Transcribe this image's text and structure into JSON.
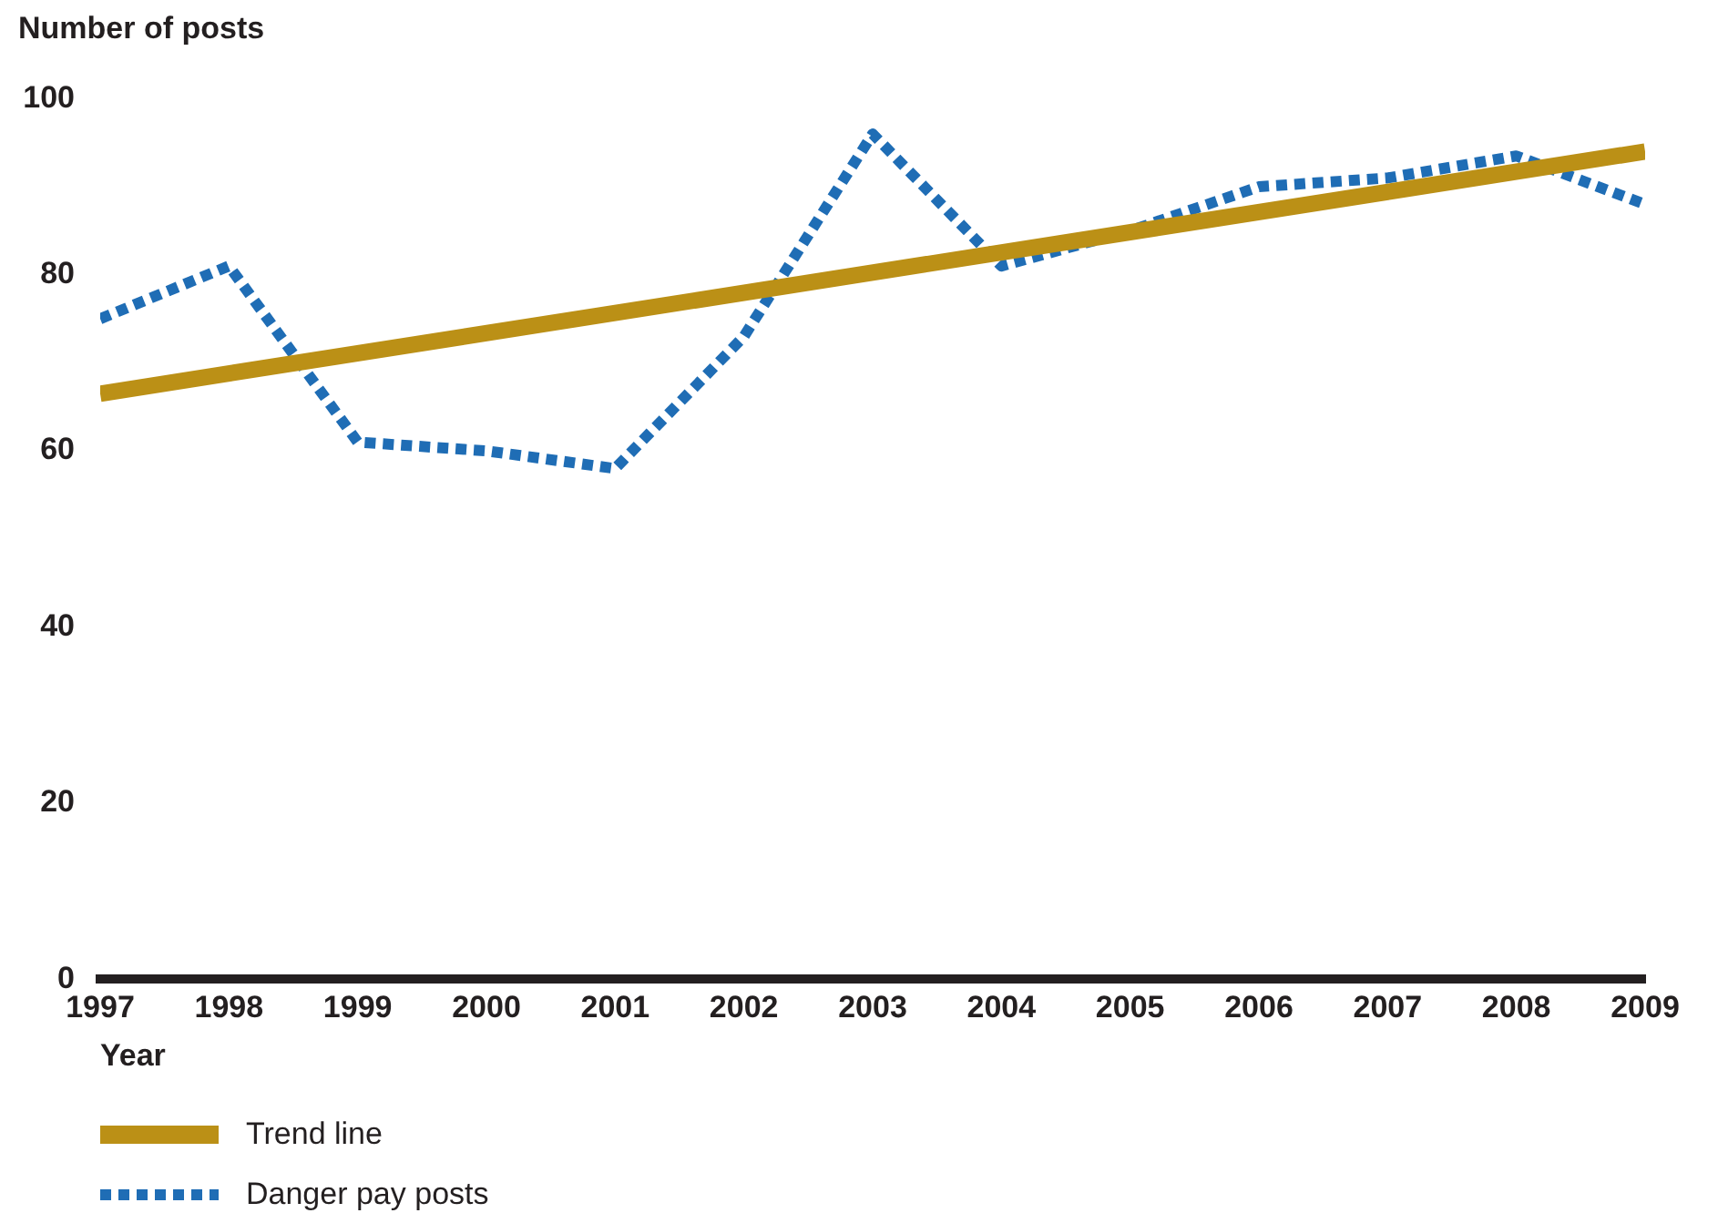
{
  "chart_data": {
    "type": "line",
    "ylabel": "Number of posts",
    "xlabel": "Year",
    "xlim": [
      1997,
      2009
    ],
    "xticks": [
      1997,
      1998,
      1999,
      2000,
      2001,
      2002,
      2003,
      2004,
      2005,
      2006,
      2007,
      2008,
      2009
    ],
    "ylim": [
      0,
      100
    ],
    "yticks": [
      0,
      20,
      40,
      60,
      80,
      100
    ],
    "grid": false,
    "legend": "bottom left",
    "marker": "none",
    "series": [
      {
        "name": "Trend line",
        "color": "#bb9016",
        "line_style": "solid",
        "x": [
          1997,
          2009
        ],
        "values": [
          66.5,
          94
        ]
      },
      {
        "name": "Danger pay posts",
        "color": "#1f6db5",
        "line_style": "dotted",
        "x": [
          1997,
          1998,
          1999,
          2000,
          2001,
          2002,
          2003,
          2004,
          2005,
          2006,
          2007,
          2008,
          2009
        ],
        "values": [
          75,
          81,
          61,
          60,
          58,
          73,
          96,
          81,
          85,
          90,
          91,
          93.5,
          88
        ]
      }
    ]
  }
}
